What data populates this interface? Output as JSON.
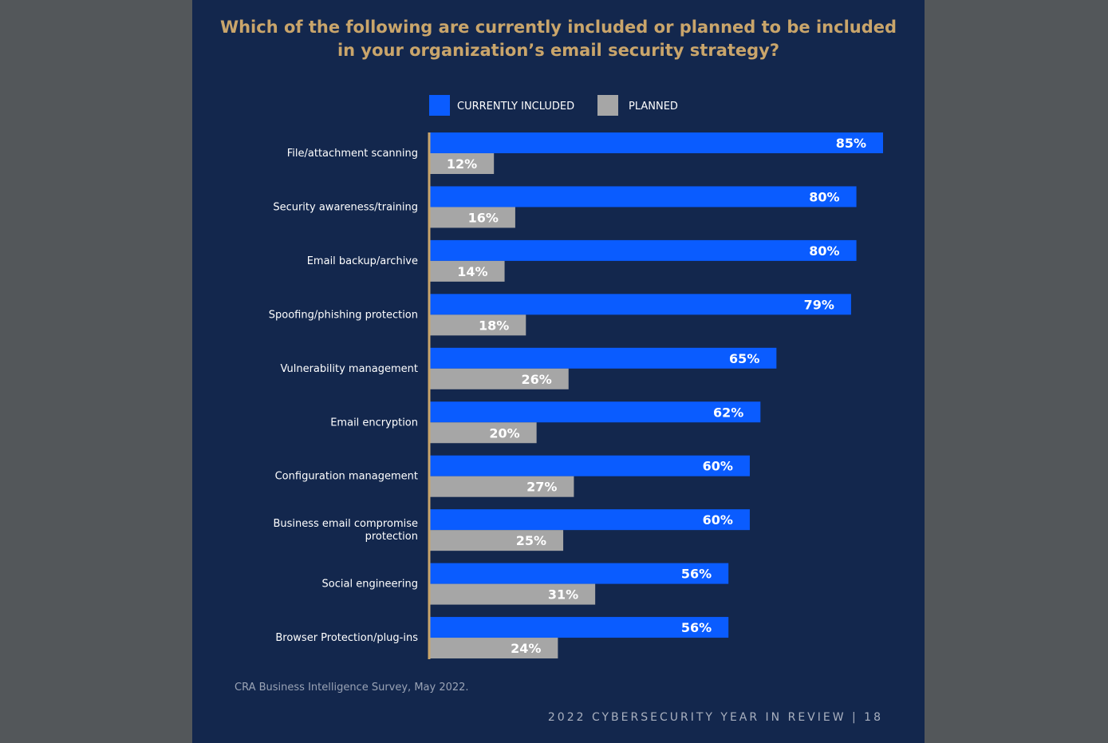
{
  "title_lines": [
    "Which of the following are currently included or planned to be included",
    "in your organization’s email security strategy?"
  ],
  "legend": [
    {
      "label": "CURRENTLY INCLUDED",
      "color": "#0a5cff"
    },
    {
      "label": "PLANNED",
      "color": "#a6a6a6"
    }
  ],
  "chart_data": {
    "type": "bar",
    "orientation": "horizontal",
    "title": "Which of the following are currently included or planned to be included in your organization’s email security strategy?",
    "categories": [
      [
        "File/attachment scanning"
      ],
      [
        "Security awareness/training"
      ],
      [
        "Email backup/archive"
      ],
      [
        "Spoofing/phishing protection"
      ],
      [
        "Vulnerability management"
      ],
      [
        "Email encryption"
      ],
      [
        "Configuration management"
      ],
      [
        "Business email compromise",
        "protection"
      ],
      [
        "Social engineering"
      ],
      [
        "Browser Protection/plug-ins"
      ]
    ],
    "series": [
      {
        "name": "CURRENTLY INCLUDED",
        "color": "#0a5cff",
        "values": [
          85,
          80,
          80,
          79,
          65,
          62,
          60,
          60,
          56,
          56
        ]
      },
      {
        "name": "PLANNED",
        "color": "#a6a6a6",
        "values": [
          12,
          16,
          14,
          18,
          26,
          20,
          27,
          25,
          31,
          24
        ]
      }
    ],
    "value_suffix": "%",
    "xlim": [
      0,
      85
    ],
    "legend_position": "top",
    "grid": false
  },
  "source": "CRA Business Intelligence Survey, May 2022.",
  "footer": "2022 CYBERSECURITY YEAR IN REVIEW |  18",
  "colors": {
    "background": "#13274d",
    "title": "#c9a56b",
    "axis": "#c9a56b"
  }
}
